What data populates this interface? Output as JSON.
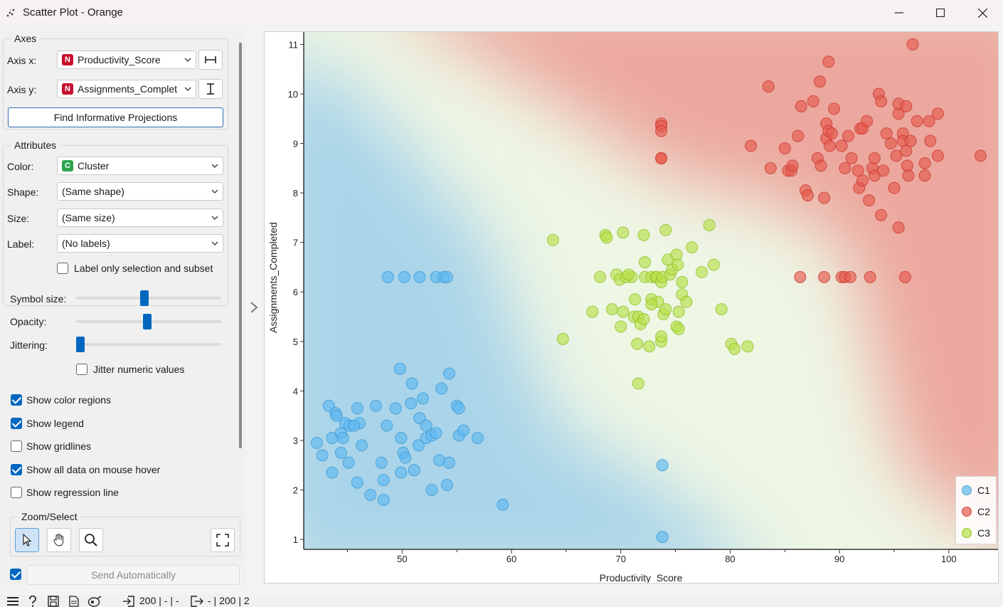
{
  "window": {
    "title": "Scatter Plot - Orange"
  },
  "axes": {
    "group_title": "Axes",
    "x_label": "Axis x:",
    "x_value": "Productivity_Score",
    "x_badge": "N",
    "y_label": "Axis y:",
    "y_value": "Assignments_Complet",
    "y_badge": "N",
    "find_button": "Find Informative Projections"
  },
  "attributes": {
    "group_title": "Attributes",
    "color_label": "Color:",
    "color_value": "Cluster",
    "color_badge": "C",
    "shape_label": "Shape:",
    "shape_value": "(Same shape)",
    "size_label": "Size:",
    "size_value": "(Same size)",
    "label_label": "Label:",
    "label_value": "(No labels)",
    "label_only_selection": "Label only selection and subset"
  },
  "sliders": {
    "symbol_size_label": "Symbol size:",
    "symbol_size_level": 0.47,
    "opacity_label": "Opacity:",
    "opacity_level": 0.49,
    "jittering_label": "Jittering:",
    "jittering_level": 0.0,
    "jitter_numeric": "Jitter numeric values"
  },
  "options": {
    "show_color_regions": "Show color regions",
    "show_legend": "Show legend",
    "show_gridlines": "Show gridlines",
    "show_all_data": "Show all data on mouse hover",
    "show_regression": "Show regression line",
    "checked": {
      "color_regions": true,
      "legend": true,
      "gridlines": false,
      "all_data": true,
      "regression": false,
      "label_only": false,
      "jitter_numeric": false
    }
  },
  "zoom": {
    "group_title": "Zoom/Select"
  },
  "send": {
    "label": "Send Automatically",
    "checked": true
  },
  "status": {
    "input_count": "200 | - | -",
    "output_count": "- | 200 | 2"
  },
  "colors": {
    "C1": "#4fb0e6",
    "C2": "#e04a3f",
    "C3": "#a9d63a",
    "accent": "#0067c0"
  },
  "chart_data": {
    "type": "scatter",
    "xlabel": "Productivity_Score",
    "ylabel": "Assignments_Completed",
    "xlim": [
      41,
      104.5
    ],
    "ylim": [
      0.8,
      11.25
    ],
    "xticks": [
      50,
      60,
      70,
      80,
      90,
      100
    ],
    "yticks": [
      1,
      2,
      3,
      4,
      5,
      6,
      7,
      8,
      9,
      10,
      11
    ],
    "grid": false,
    "legend_position": "bottom-right",
    "series": [
      {
        "name": "C1",
        "points": [
          [
            48.7,
            6.3
          ],
          [
            50.2,
            6.3
          ],
          [
            51.6,
            6.3
          ],
          [
            53.1,
            6.3
          ],
          [
            53.8,
            6.3
          ],
          [
            54.1,
            6.3
          ],
          [
            73.8,
            2.5
          ],
          [
            73.8,
            1.05
          ],
          [
            59.2,
            1.7
          ],
          [
            42.7,
            2.7
          ],
          [
            43.6,
            2.35
          ],
          [
            43.3,
            3.7
          ],
          [
            43.6,
            3.05
          ],
          [
            43.9,
            3.55
          ],
          [
            44.4,
            2.75
          ],
          [
            44.4,
            3.15
          ],
          [
            44.6,
            3.05
          ],
          [
            44.8,
            3.35
          ],
          [
            45.2,
            3.3
          ],
          [
            45.1,
            2.55
          ],
          [
            45.9,
            2.15
          ],
          [
            45.9,
            3.65
          ],
          [
            46.3,
            2.9
          ],
          [
            46.1,
            3.35
          ],
          [
            47.1,
            1.9
          ],
          [
            47.6,
            3.7
          ],
          [
            48.1,
            2.55
          ],
          [
            48.3,
            2.2
          ],
          [
            48.3,
            1.8
          ],
          [
            48.6,
            3.3
          ],
          [
            49.4,
            3.65
          ],
          [
            49.8,
            4.45
          ],
          [
            49.9,
            2.35
          ],
          [
            49.9,
            3.05
          ],
          [
            50.1,
            2.75
          ],
          [
            50.3,
            2.65
          ],
          [
            50.8,
            3.75
          ],
          [
            50.9,
            4.15
          ],
          [
            51.1,
            2.4
          ],
          [
            51.5,
            2.9
          ],
          [
            51.6,
            3.45
          ],
          [
            51.9,
            3.85
          ],
          [
            52.2,
            3.3
          ],
          [
            52.2,
            3.05
          ],
          [
            52.7,
            3.1
          ],
          [
            52.7,
            2.0
          ],
          [
            53.1,
            3.15
          ],
          [
            53.4,
            2.6
          ],
          [
            53.6,
            4.05
          ],
          [
            54.1,
            2.1
          ],
          [
            54.3,
            2.55
          ],
          [
            54.3,
            4.35
          ],
          [
            55.0,
            3.7
          ],
          [
            55.2,
            3.1
          ],
          [
            55.2,
            3.65
          ],
          [
            55.6,
            3.2
          ],
          [
            56.9,
            3.05
          ],
          [
            42.2,
            2.95
          ],
          [
            44.0,
            3.5
          ],
          [
            45.6,
            3.3
          ]
        ]
      },
      {
        "name": "C2",
        "points": [
          [
            73.7,
            9.4
          ],
          [
            73.7,
            9.35
          ],
          [
            73.7,
            9.25
          ],
          [
            73.7,
            8.7
          ],
          [
            73.7,
            8.7
          ],
          [
            86.4,
            6.3
          ],
          [
            88.6,
            6.3
          ],
          [
            90.2,
            6.3
          ],
          [
            90.5,
            6.3
          ],
          [
            91.0,
            6.3
          ],
          [
            92.8,
            6.3
          ],
          [
            96.0,
            6.3
          ],
          [
            83.5,
            10.15
          ],
          [
            81.9,
            8.95
          ],
          [
            83.7,
            8.5
          ],
          [
            85.0,
            8.9
          ],
          [
            85.3,
            8.45
          ],
          [
            85.6,
            8.45
          ],
          [
            85.7,
            8.55
          ],
          [
            86.2,
            9.15
          ],
          [
            86.5,
            9.75
          ],
          [
            86.9,
            8.05
          ],
          [
            87.1,
            7.95
          ],
          [
            87.6,
            9.85
          ],
          [
            88.0,
            8.7
          ],
          [
            88.2,
            10.25
          ],
          [
            88.3,
            8.55
          ],
          [
            88.6,
            7.9
          ],
          [
            88.8,
            9.1
          ],
          [
            88.8,
            9.4
          ],
          [
            89.0,
            9.25
          ],
          [
            89.0,
            10.65
          ],
          [
            89.1,
            8.95
          ],
          [
            89.3,
            9.2
          ],
          [
            89.5,
            9.7
          ],
          [
            90.2,
            8.95
          ],
          [
            90.5,
            8.5
          ],
          [
            90.8,
            9.15
          ],
          [
            91.1,
            8.7
          ],
          [
            91.7,
            8.45
          ],
          [
            91.8,
            8.1
          ],
          [
            91.9,
            9.3
          ],
          [
            92.1,
            8.25
          ],
          [
            92.1,
            9.3
          ],
          [
            92.5,
            9.45
          ],
          [
            92.7,
            7.85
          ],
          [
            93.0,
            8.5
          ],
          [
            93.2,
            8.35
          ],
          [
            93.2,
            8.7
          ],
          [
            93.6,
            10.0
          ],
          [
            93.8,
            7.55
          ],
          [
            93.8,
            9.85
          ],
          [
            94.0,
            8.45
          ],
          [
            94.3,
            9.2
          ],
          [
            94.7,
            9.0
          ],
          [
            95.0,
            8.1
          ],
          [
            95.2,
            8.75
          ],
          [
            95.4,
            7.3
          ],
          [
            95.4,
            9.6
          ],
          [
            95.4,
            9.8
          ],
          [
            95.8,
            9.2
          ],
          [
            95.8,
            9.05
          ],
          [
            96.1,
            8.85
          ],
          [
            96.1,
            9.75
          ],
          [
            96.2,
            8.55
          ],
          [
            96.3,
            8.35
          ],
          [
            96.5,
            9.05
          ],
          [
            96.7,
            11.0
          ],
          [
            97.1,
            9.45
          ],
          [
            97.8,
            8.35
          ],
          [
            97.8,
            8.6
          ],
          [
            98.2,
            9.45
          ],
          [
            98.3,
            9.05
          ],
          [
            99.0,
            8.75
          ],
          [
            99.0,
            9.6
          ],
          [
            102.9,
            8.75
          ]
        ]
      },
      {
        "name": "C3",
        "points": [
          [
            63.8,
            7.05
          ],
          [
            64.7,
            5.05
          ],
          [
            67.4,
            5.6
          ],
          [
            68.1,
            6.3
          ],
          [
            68.6,
            7.15
          ],
          [
            68.7,
            7.1
          ],
          [
            69.2,
            5.65
          ],
          [
            69.6,
            6.35
          ],
          [
            69.9,
            6.25
          ],
          [
            70.0,
            5.3
          ],
          [
            70.2,
            5.6
          ],
          [
            70.2,
            7.2
          ],
          [
            70.5,
            6.3
          ],
          [
            71.0,
            6.3
          ],
          [
            71.2,
            5.5
          ],
          [
            71.3,
            5.85
          ],
          [
            71.5,
            4.95
          ],
          [
            71.6,
            4.15
          ],
          [
            71.6,
            5.5
          ],
          [
            71.8,
            5.35
          ],
          [
            72.1,
            5.45
          ],
          [
            72.2,
            6.3
          ],
          [
            72.2,
            6.6
          ],
          [
            72.6,
            4.9
          ],
          [
            72.8,
            5.85
          ],
          [
            72.8,
            6.3
          ],
          [
            73.2,
            6.3
          ],
          [
            73.3,
            6.3
          ],
          [
            73.4,
            5.8
          ],
          [
            73.7,
            6.2
          ],
          [
            73.7,
            5.0
          ],
          [
            73.7,
            5.1
          ],
          [
            73.8,
            6.3
          ],
          [
            73.9,
            5.55
          ],
          [
            74.1,
            5.65
          ],
          [
            74.1,
            7.25
          ],
          [
            74.3,
            6.65
          ],
          [
            74.5,
            6.35
          ],
          [
            74.7,
            6.45
          ],
          [
            75.1,
            6.75
          ],
          [
            75.1,
            5.3
          ],
          [
            75.3,
            5.25
          ],
          [
            75.3,
            5.6
          ],
          [
            75.6,
            5.95
          ],
          [
            75.6,
            6.2
          ],
          [
            76.0,
            5.8
          ],
          [
            76.5,
            6.9
          ],
          [
            77.4,
            6.4
          ],
          [
            78.1,
            7.35
          ],
          [
            78.5,
            6.55
          ],
          [
            79.2,
            5.65
          ],
          [
            80.1,
            4.95
          ],
          [
            80.4,
            4.85
          ],
          [
            81.6,
            4.9
          ],
          [
            75.2,
            6.55
          ],
          [
            72.1,
            7.15
          ],
          [
            70.7,
            6.35
          ],
          [
            72.8,
            5.75
          ]
        ]
      }
    ]
  }
}
